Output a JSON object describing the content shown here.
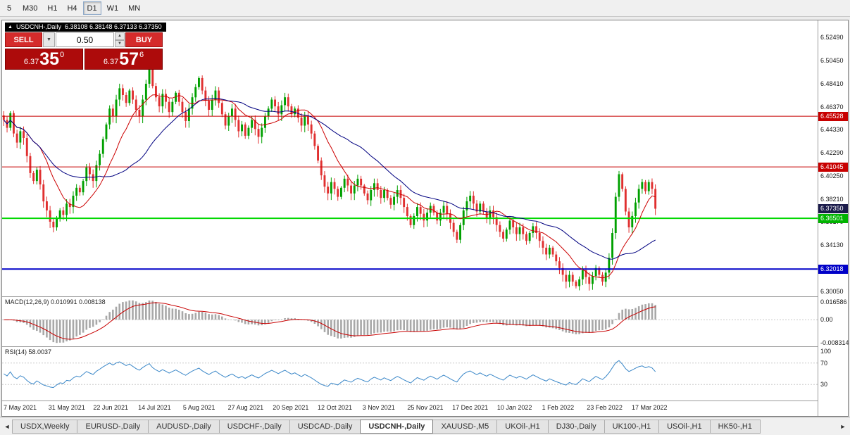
{
  "toolbar": {
    "timeframes": [
      {
        "label": "5",
        "active": false
      },
      {
        "label": "M30",
        "active": false
      },
      {
        "label": "H1",
        "active": false
      },
      {
        "label": "H4",
        "active": false
      },
      {
        "label": "D1",
        "active": true
      },
      {
        "label": "W1",
        "active": false
      },
      {
        "label": "MN",
        "active": false
      }
    ]
  },
  "main_chart": {
    "collapse_icon": "▲",
    "title": "USDCNH-,Daily",
    "ohlc": "6.38108 6.38148 6.37133 6.37350"
  },
  "trade_panel": {
    "sell_label": "SELL",
    "buy_label": "BUY",
    "volume": "0.50",
    "dropdown_icon": "▼",
    "spin_up_icon": "▲",
    "spin_down_icon": "▼",
    "sell_price": {
      "prefix": "6.37",
      "pips": "35",
      "pipette": "0"
    },
    "buy_price": {
      "prefix": "6.37",
      "pips": "57",
      "pipette": "6"
    }
  },
  "price_axis": {
    "labels": [
      "6.52490",
      "6.50450",
      "6.48410",
      "6.46370",
      "6.44330",
      "6.42290",
      "6.40250",
      "6.38210",
      "6.36170",
      "6.34130",
      "6.32090",
      "6.30050"
    ]
  },
  "price_markers": [
    {
      "value": 6.45528,
      "label": "6.45528",
      "color": "#C80000"
    },
    {
      "value": 6.41045,
      "label": "6.41045",
      "color": "#C80000"
    },
    {
      "value": 6.3735,
      "label": "6.37350",
      "color": "#1B1B4B"
    },
    {
      "value": 6.36501,
      "label": "6.36501",
      "color": "#00B400"
    },
    {
      "value": 6.32018,
      "label": "6.32018",
      "color": "#0000C8"
    }
  ],
  "macd": {
    "label": "MACD(12,26,9) 0.010991 0.008138",
    "axis": [
      "0.016586",
      "0.00",
      "-0.008314"
    ]
  },
  "rsi": {
    "label": "RSI(14) 58.0037",
    "axis": [
      "100",
      "70",
      "30"
    ]
  },
  "date_axis": {
    "labels": [
      "7 May 2021",
      "31 May 2021",
      "22 Jun 2021",
      "14 Jul 2021",
      "5 Aug 2021",
      "27 Aug 2021",
      "20 Sep 2021",
      "12 Oct 2021",
      "3 Nov 2021",
      "25 Nov 2021",
      "17 Dec 2021",
      "10 Jan 2022",
      "1 Feb 2022",
      "23 Feb 2022",
      "17 Mar 2022"
    ]
  },
  "bottom_tabs": {
    "left_arrow": "◄",
    "right_arrow": "►",
    "tabs": [
      {
        "label": "USDX,Weekly",
        "active": false
      },
      {
        "label": "EURUSD-,Daily",
        "active": false
      },
      {
        "label": "AUDUSD-,Daily",
        "active": false
      },
      {
        "label": "USDCHF-,Daily",
        "active": false
      },
      {
        "label": "USDCAD-,Daily",
        "active": false
      },
      {
        "label": "USDCNH-,Daily",
        "active": true
      },
      {
        "label": "XAUUSD-,M5",
        "active": false
      },
      {
        "label": "UKOil-,H1",
        "active": false
      },
      {
        "label": "DJ30-,Daily",
        "active": false
      },
      {
        "label": "UK100-,H1",
        "active": false
      },
      {
        "label": "USOil-,H1",
        "active": false
      },
      {
        "label": "HK50-,H1",
        "active": false
      }
    ]
  },
  "chart_data": {
    "type": "candlestick",
    "symbol": "USDCNH-",
    "timeframe": "Daily",
    "ohlc_current": {
      "open": 6.38108,
      "high": 6.38148,
      "low": 6.37133,
      "close": 6.3735
    },
    "price_min": 6.296,
    "price_max": 6.54,
    "up_color": "#00A000",
    "down_color": "#E03030",
    "ma_fast": {
      "period": 12,
      "color": "#CC0000"
    },
    "ma_slow": {
      "period": 30,
      "color": "#000080"
    },
    "hlines": [
      {
        "price": 6.45528,
        "color": "#C80000",
        "width": 1
      },
      {
        "price": 6.41045,
        "color": "#C80000",
        "width": 1
      },
      {
        "price": 6.36501,
        "color": "#00D800",
        "width": 2
      },
      {
        "price": 6.32018,
        "color": "#0000C8",
        "width": 2
      }
    ],
    "macd": {
      "fast": 12,
      "slow": 26,
      "signal": 9,
      "macd_value": 0.010991,
      "signal_value": 0.008138
    },
    "rsi": {
      "period": 14,
      "value": 58.0037,
      "levels": [
        70,
        30
      ]
    },
    "closes": [
      6.452,
      6.445,
      6.458,
      6.44,
      6.432,
      6.442,
      6.436,
      6.42,
      6.405,
      6.398,
      6.408,
      6.395,
      6.38,
      6.372,
      6.362,
      6.357,
      6.365,
      6.372,
      6.368,
      6.378,
      6.375,
      6.385,
      6.392,
      6.388,
      6.398,
      6.41,
      6.404,
      6.398,
      6.412,
      6.422,
      6.435,
      6.448,
      6.462,
      6.455,
      6.47,
      6.48,
      6.474,
      6.467,
      6.478,
      6.47,
      6.461,
      6.455,
      6.47,
      6.484,
      6.498,
      6.482,
      6.472,
      6.464,
      6.475,
      6.468,
      6.459,
      6.468,
      6.476,
      6.468,
      6.459,
      6.451,
      6.462,
      6.472,
      6.481,
      6.489,
      6.478,
      6.469,
      6.461,
      6.47,
      6.478,
      6.467,
      6.457,
      6.447,
      6.455,
      6.462,
      6.452,
      6.442,
      6.448,
      6.438,
      6.445,
      6.452,
      6.444,
      6.437,
      6.445,
      6.455,
      6.462,
      6.47,
      6.464,
      6.457,
      6.465,
      6.472,
      6.464,
      6.457,
      6.462,
      6.454,
      6.447,
      6.455,
      6.448,
      6.44,
      6.429,
      6.416,
      6.403,
      6.393,
      6.387,
      6.397,
      6.391,
      6.384,
      6.392,
      6.4,
      6.394,
      6.387,
      6.394,
      6.4,
      6.394,
      6.387,
      6.381,
      6.39,
      6.396,
      6.39,
      6.383,
      6.39,
      6.383,
      6.377,
      6.384,
      6.39,
      6.383,
      6.375,
      6.367,
      6.359,
      6.367,
      6.375,
      6.369,
      6.363,
      6.37,
      6.376,
      6.37,
      6.363,
      6.37,
      6.376,
      6.369,
      6.361,
      6.353,
      6.346,
      6.359,
      6.372,
      6.38,
      6.385,
      6.378,
      6.371,
      6.378,
      6.371,
      6.365,
      6.372,
      6.366,
      6.359,
      6.353,
      6.347,
      6.355,
      6.363,
      6.357,
      6.351,
      6.357,
      6.351,
      6.345,
      6.352,
      6.358,
      6.352,
      6.345,
      6.339,
      6.333,
      6.339,
      6.333,
      6.327,
      6.321,
      6.315,
      6.309,
      6.315,
      6.309,
      6.305,
      6.311,
      6.319,
      6.313,
      6.307,
      6.314,
      6.321,
      6.315,
      6.309,
      6.317,
      6.33,
      6.352,
      6.384,
      6.404,
      6.391,
      6.371,
      6.357,
      6.367,
      6.379,
      6.391,
      6.397,
      6.389,
      6.397,
      6.391,
      6.3735
    ]
  }
}
